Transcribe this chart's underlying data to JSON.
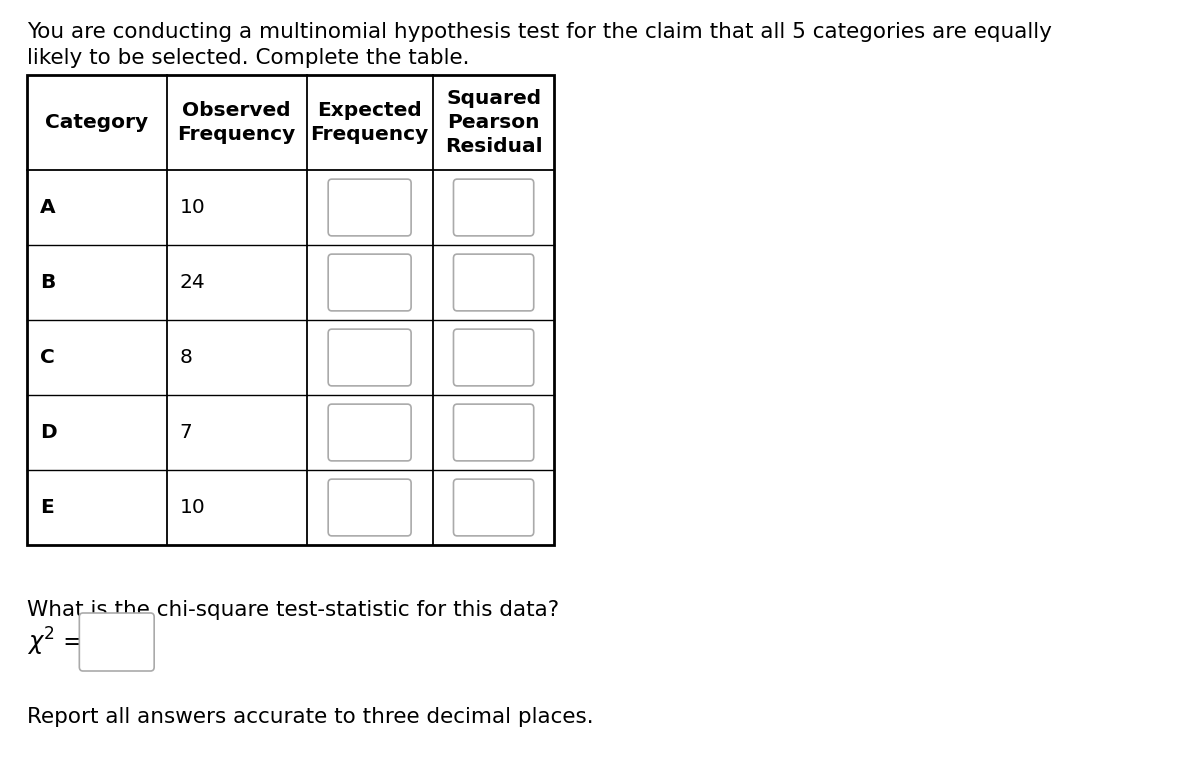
{
  "title_line1": "You are conducting a multinomial hypothesis test for the claim that all 5 categories are equally",
  "title_line2": "likely to be selected. Complete the table.",
  "col_headers": [
    "Category",
    "Observed\nFrequency",
    "Expected\nFrequency",
    "Squared\nPearson\nResidual"
  ],
  "categories": [
    "A",
    "B",
    "C",
    "D",
    "E"
  ],
  "observed": [
    10,
    24,
    8,
    7,
    10
  ],
  "question_line1": "What is the chi-square test-statistic for this data?",
  "footer": "Report all answers accurate to three decimal places.",
  "bg_color": "#ffffff",
  "text_color": "#000000",
  "table_border_color": "#000000",
  "input_box_color": "#ffffff",
  "input_box_border": "#aaaaaa",
  "font_size_title": 15.5,
  "font_size_table_header": 14.5,
  "font_size_table_data": 14.5,
  "font_size_question": 15.5
}
